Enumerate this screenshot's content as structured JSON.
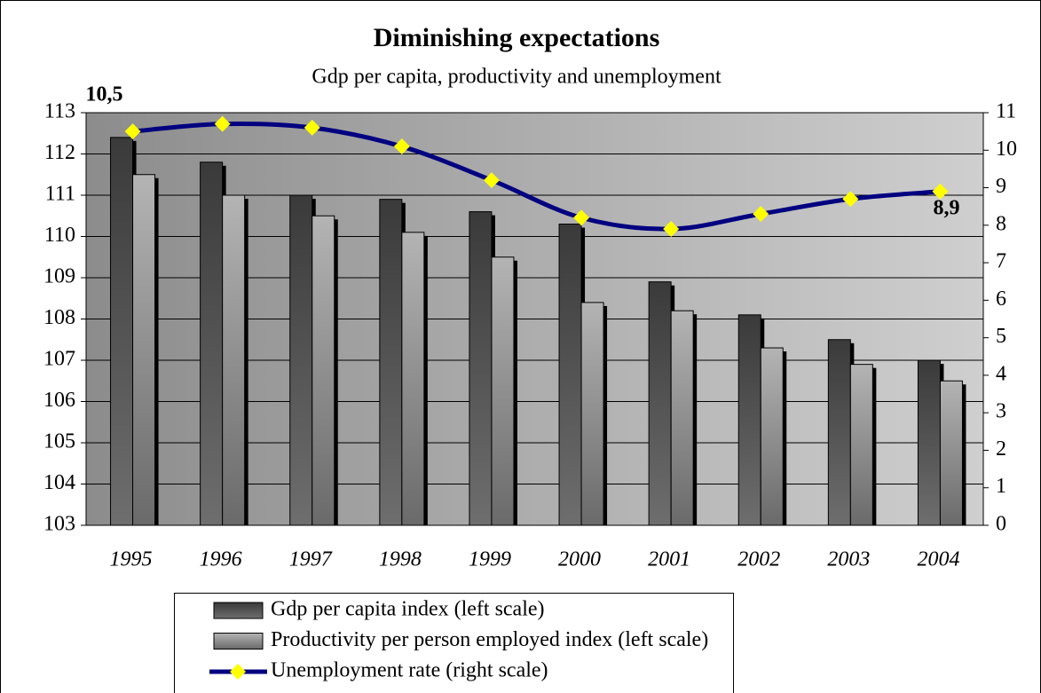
{
  "chart_data": {
    "type": "bar_line",
    "title": "Diminishing expectations",
    "subtitle": "Gdp per capita, productivity and unemployment",
    "categories": [
      "1995",
      "1996",
      "1997",
      "1998",
      "1999",
      "2000",
      "2001",
      "2002",
      "2003",
      "2004"
    ],
    "series": [
      {
        "name": "Gdp per capita index (left scale)",
        "type": "bar",
        "color": "#4d4d4d",
        "values": [
          112.4,
          111.8,
          111.0,
          110.9,
          110.6,
          110.3,
          108.9,
          108.1,
          107.5,
          107.0
        ]
      },
      {
        "name": "Productivity per person employed index (left scale)",
        "type": "bar",
        "color": "#a6a6a6",
        "values": [
          111.5,
          111.0,
          110.5,
          110.1,
          109.5,
          108.4,
          108.2,
          107.3,
          106.9,
          106.5
        ]
      },
      {
        "name": "Unemployment rate (right scale)",
        "type": "line",
        "axis": "y2",
        "color": "#000080",
        "marker_color": "#ffff00",
        "values": [
          10.5,
          10.7,
          10.6,
          10.1,
          9.2,
          8.2,
          7.9,
          8.3,
          8.7,
          8.9
        ],
        "value_labels": [
          "10,5",
          null,
          null,
          null,
          null,
          null,
          null,
          null,
          null,
          "8,9"
        ]
      }
    ],
    "ylim": [
      103,
      113
    ],
    "yticks": [
      103,
      104,
      105,
      106,
      107,
      108,
      109,
      110,
      111,
      112,
      113
    ],
    "y2lim": [
      0,
      11
    ],
    "y2ticks": [
      0,
      1,
      2,
      3,
      4,
      5,
      6,
      7,
      8,
      9,
      10,
      11
    ],
    "grid": true,
    "legend": "bottom"
  }
}
